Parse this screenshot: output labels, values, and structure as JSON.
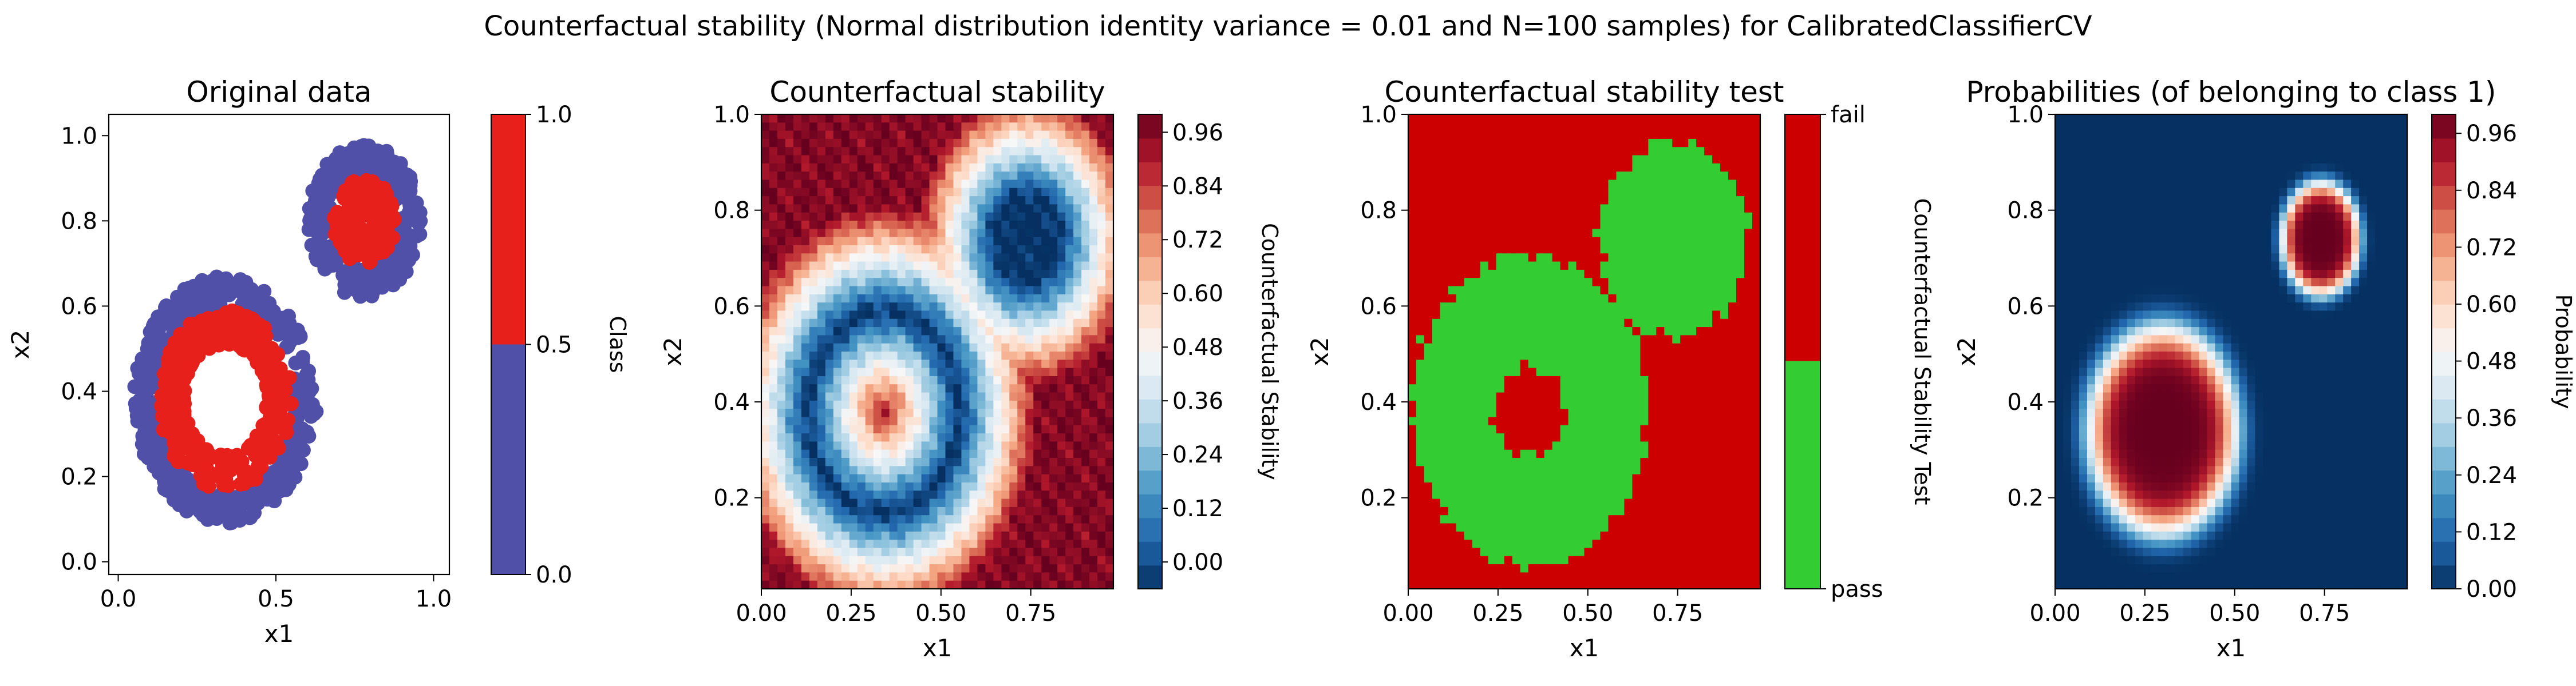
{
  "figure": {
    "suptitle": "Counterfactual stability (Normal distribution identity variance = 0.01 and N=100 samples) for CalibratedClassifierCV"
  },
  "chart_data": [
    {
      "type": "scatter",
      "title": "Original data",
      "xlabel": "x1",
      "ylabel": "x2",
      "xlim": [
        -0.03,
        1.05
      ],
      "ylim": [
        -0.03,
        1.05
      ],
      "xticks": [
        "0.0",
        "0.5",
        "1.0"
      ],
      "yticks": [
        "0.0",
        "0.2",
        "0.4",
        "0.6",
        "0.8",
        "1.0"
      ],
      "series": [
        {
          "class": 0,
          "color": "#5050a8",
          "shape": "ring",
          "center": [
            0.34,
            0.38
          ],
          "radius": [
            0.22,
            0.29
          ]
        },
        {
          "class": 1,
          "color": "#e8201c",
          "shape": "ring",
          "center": [
            0.34,
            0.38
          ],
          "radius": [
            0.13,
            0.21
          ]
        },
        {
          "class": 0,
          "color": "#5050a8",
          "shape": "ring",
          "center": [
            0.78,
            0.8
          ],
          "radius": [
            0.11,
            0.18
          ]
        },
        {
          "class": 1,
          "color": "#e8201c",
          "shape": "ring",
          "center": [
            0.78,
            0.8
          ],
          "radius": [
            0.02,
            0.1
          ]
        }
      ],
      "colorbar": {
        "label": "Class",
        "ticks": [
          "0.0",
          "0.5",
          "1.0"
        ],
        "colors": [
          "#5050a8",
          "#e8201c"
        ]
      }
    },
    {
      "type": "heatmap",
      "title": "Counterfactual stability",
      "xlabel": "x1",
      "ylabel": "x2",
      "xlim": [
        0.0,
        0.98
      ],
      "ylim": [
        0.01,
        1.0
      ],
      "xticks": [
        "0.00",
        "0.25",
        "0.50",
        "0.75"
      ],
      "yticks": [
        "0.2",
        "0.4",
        "0.6",
        "0.8",
        "1.0"
      ],
      "colormap": "RdBu_r",
      "range": [
        -0.06,
        1.0
      ],
      "colorbar": {
        "label": "Counterfactual Stability",
        "ticks": [
          "0.00",
          "0.12",
          "0.24",
          "0.36",
          "0.48",
          "0.60",
          "0.72",
          "0.84",
          "0.96"
        ]
      }
    },
    {
      "type": "heatmap",
      "title": "Counterfactual stability test",
      "xlabel": "x1",
      "ylabel": "x2",
      "xlim": [
        0.0,
        0.98
      ],
      "ylim": [
        0.01,
        1.0
      ],
      "xticks": [
        "0.00",
        "0.25",
        "0.50",
        "0.75"
      ],
      "yticks": [
        "0.2",
        "0.4",
        "0.6",
        "0.8",
        "1.0"
      ],
      "categories": [
        "pass",
        "fail"
      ],
      "colors": {
        "pass": "#33cc33",
        "fail": "#cc0000"
      },
      "colorbar": {
        "label": "Counterfactual Stability Test",
        "ticks": [
          "pass",
          "fail"
        ]
      }
    },
    {
      "type": "heatmap",
      "title": "Probabilities (of belonging to class 1)",
      "xlabel": "x1",
      "ylabel": "x2",
      "xlim": [
        0.0,
        0.98
      ],
      "ylim": [
        0.01,
        1.0
      ],
      "xticks": [
        "0.00",
        "0.25",
        "0.50",
        "0.75"
      ],
      "yticks": [
        "0.2",
        "0.4",
        "0.6",
        "0.8",
        "1.0"
      ],
      "colormap": "RdBu_r",
      "range": [
        0.0,
        1.0
      ],
      "colorbar": {
        "label": "Probability",
        "ticks": [
          "0.00",
          "0.12",
          "0.24",
          "0.36",
          "0.48",
          "0.60",
          "0.72",
          "0.84",
          "0.96"
        ]
      }
    }
  ]
}
